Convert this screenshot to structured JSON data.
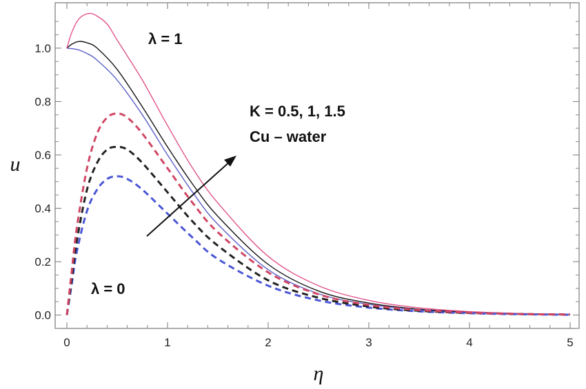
{
  "chart_data": {
    "type": "line",
    "title": "",
    "xlabel": "η",
    "ylabel": "u",
    "xlim": [
      0,
      5
    ],
    "ylim": [
      -0.05,
      1.17
    ],
    "x_ticks": [
      "0",
      "1",
      "2",
      "3",
      "4",
      "5"
    ],
    "y_ticks": [
      "0.0",
      "0.2",
      "0.4",
      "0.6",
      "0.8",
      "1.0"
    ],
    "grid": false,
    "annotations": {
      "lambda1": "λ = 1",
      "lambda0": "λ = 0",
      "k_values": "K = 0.5, 1, 1.5",
      "fluid": "Cu  – water"
    },
    "series": [
      {
        "group": "λ = 1",
        "K": "0.5",
        "color": "#5b5fc7",
        "style": "solid",
        "x": [
          0,
          0.1,
          0.2,
          0.3,
          0.5,
          0.75,
          1,
          1.25,
          1.5,
          2,
          2.5,
          3,
          3.5,
          4,
          4.5,
          5
        ],
        "y": [
          1.0,
          0.995,
          0.98,
          0.955,
          0.88,
          0.75,
          0.6,
          0.46,
          0.34,
          0.17,
          0.08,
          0.04,
          0.02,
          0.01,
          0.005,
          0.002
        ]
      },
      {
        "group": "λ = 1",
        "K": "1",
        "color": "#111111",
        "style": "solid",
        "x": [
          0,
          0.05,
          0.12,
          0.2,
          0.3,
          0.5,
          0.75,
          1,
          1.25,
          1.5,
          2,
          2.5,
          3,
          3.5,
          4,
          4.5,
          5
        ],
        "y": [
          1.0,
          1.015,
          1.025,
          1.02,
          1.0,
          0.92,
          0.78,
          0.63,
          0.49,
          0.37,
          0.19,
          0.09,
          0.045,
          0.022,
          0.011,
          0.005,
          0.002
        ]
      },
      {
        "group": "λ = 1",
        "K": "1.5",
        "color": "#e0508a",
        "style": "solid",
        "x": [
          0,
          0.05,
          0.12,
          0.22,
          0.3,
          0.4,
          0.5,
          0.75,
          1,
          1.25,
          1.5,
          2,
          2.5,
          3,
          3.5,
          4,
          4.5,
          5
        ],
        "y": [
          1.0,
          1.06,
          1.11,
          1.13,
          1.12,
          1.09,
          1.03,
          0.88,
          0.71,
          0.55,
          0.42,
          0.22,
          0.11,
          0.055,
          0.027,
          0.013,
          0.006,
          0.003
        ]
      },
      {
        "group": "λ = 0",
        "K": "0.5",
        "color": "#4a56d6",
        "style": "dashed",
        "x": [
          0,
          0.05,
          0.1,
          0.2,
          0.3,
          0.4,
          0.5,
          0.6,
          0.75,
          1,
          1.25,
          1.5,
          2,
          2.5,
          3,
          3.5,
          4,
          4.5,
          5
        ],
        "y": [
          0,
          0.12,
          0.24,
          0.39,
          0.47,
          0.51,
          0.52,
          0.51,
          0.47,
          0.38,
          0.29,
          0.21,
          0.11,
          0.055,
          0.028,
          0.014,
          0.007,
          0.003,
          0.001
        ]
      },
      {
        "group": "λ = 0",
        "K": "1",
        "color": "#222222",
        "style": "dashed",
        "x": [
          0,
          0.05,
          0.1,
          0.2,
          0.3,
          0.4,
          0.5,
          0.6,
          0.75,
          1,
          1.25,
          1.5,
          2,
          2.5,
          3,
          3.5,
          4,
          4.5,
          5
        ],
        "y": [
          0,
          0.14,
          0.28,
          0.47,
          0.57,
          0.62,
          0.63,
          0.62,
          0.57,
          0.46,
          0.35,
          0.26,
          0.13,
          0.065,
          0.032,
          0.016,
          0.008,
          0.004,
          0.002
        ]
      },
      {
        "group": "λ = 0",
        "K": "1.5",
        "color": "#d04664",
        "style": "dashed",
        "x": [
          0,
          0.05,
          0.1,
          0.2,
          0.3,
          0.4,
          0.5,
          0.6,
          0.75,
          1,
          1.25,
          1.5,
          2,
          2.5,
          3,
          3.5,
          4,
          4.5,
          5
        ],
        "y": [
          0,
          0.17,
          0.33,
          0.55,
          0.68,
          0.74,
          0.755,
          0.74,
          0.68,
          0.55,
          0.42,
          0.31,
          0.16,
          0.078,
          0.038,
          0.019,
          0.009,
          0.004,
          0.002
        ]
      }
    ]
  }
}
